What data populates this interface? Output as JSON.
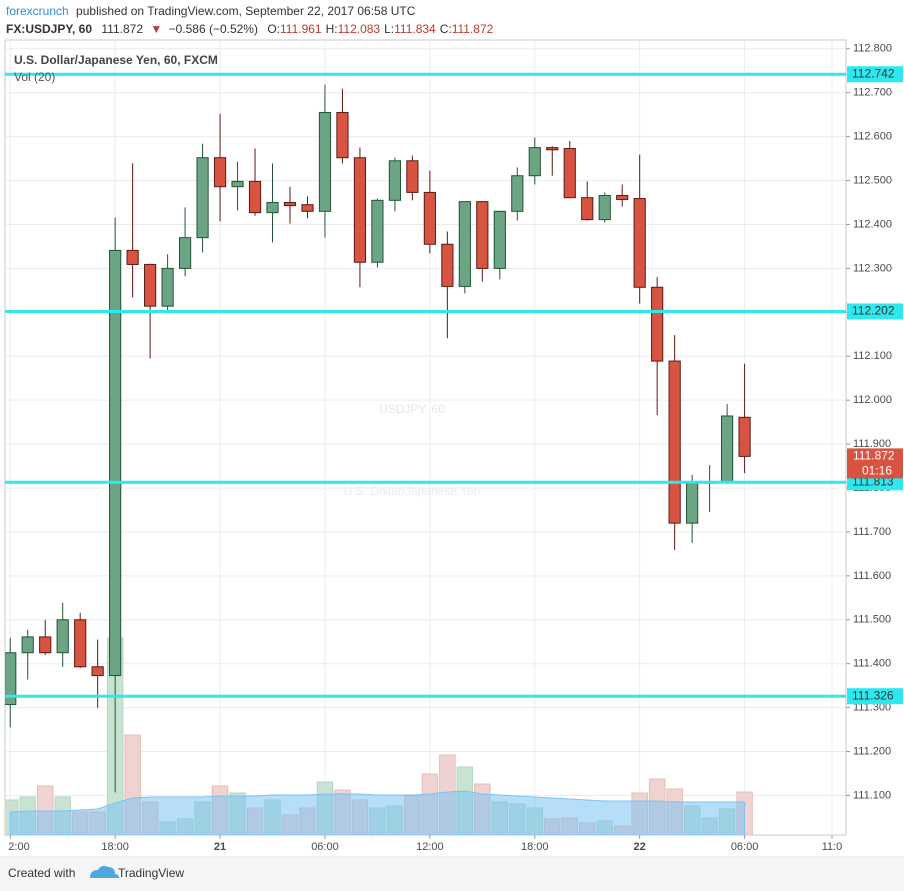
{
  "header": {
    "author": "forexcrunch",
    "published": "published on TradingView.com, September 22, 2017 06:58 UTC"
  },
  "chart_data": {
    "type": "candlestick",
    "symbol": "FX:USDJPY, 60",
    "last": "111.872",
    "arrow": "▼",
    "change": "−0.586 (−0.52%)",
    "ohlc": [
      {
        "name": "O:",
        "value": "111.961"
      },
      {
        "name": "H:",
        "value": "112.083"
      },
      {
        "name": "L:",
        "value": "111.834"
      },
      {
        "name": "C:",
        "value": "111.872"
      }
    ],
    "title": "U.S. Dollar/Japanese Yen, 60, FXCM",
    "indicator": "Vol (20)",
    "watermark": "USDJPY, 60",
    "watermark_subtitle": "U.S. Dollar/Japanese Yen",
    "open": [
      111.307,
      111.425,
      111.461,
      111.425,
      111.5,
      111.393,
      111.373,
      112.341,
      112.309,
      112.214,
      112.3,
      112.37,
      112.552,
      112.486,
      112.498,
      112.427,
      112.45,
      112.445,
      112.43,
      112.655,
      112.552,
      112.314,
      112.455,
      112.545,
      112.473,
      112.355,
      112.259,
      112.452,
      112.3,
      112.43,
      112.511,
      112.575,
      112.573,
      112.461,
      112.411,
      112.466,
      112.459,
      112.257,
      112.089,
      111.72,
      111.811,
      111.814,
      111.961
    ],
    "high": [
      111.459,
      111.477,
      111.5,
      111.539,
      111.516,
      111.455,
      112.416,
      112.539,
      112.311,
      112.332,
      112.439,
      112.584,
      112.652,
      112.543,
      112.573,
      112.539,
      112.486,
      112.464,
      112.718,
      112.709,
      112.575,
      112.459,
      112.552,
      112.557,
      112.523,
      112.384,
      112.452,
      112.452,
      112.43,
      112.53,
      112.598,
      112.578,
      112.59,
      112.498,
      112.473,
      112.491,
      112.559,
      112.28,
      112.148,
      111.83,
      111.852,
      111.991,
      112.083
    ],
    "low": [
      111.255,
      111.364,
      111.42,
      111.393,
      111.39,
      111.3,
      111.107,
      112.234,
      112.095,
      112.198,
      112.282,
      112.336,
      112.407,
      112.432,
      112.42,
      112.359,
      112.402,
      112.414,
      112.37,
      112.539,
      112.257,
      112.302,
      112.43,
      112.455,
      112.334,
      112.141,
      112.243,
      112.27,
      112.275,
      112.409,
      112.491,
      112.511,
      112.461,
      112.409,
      112.405,
      112.441,
      112.22,
      111.966,
      111.659,
      111.675,
      111.745,
      111.809,
      111.834
    ],
    "close": [
      111.425,
      111.461,
      111.425,
      111.5,
      111.393,
      111.373,
      112.341,
      112.309,
      112.214,
      112.3,
      112.37,
      112.552,
      112.486,
      112.498,
      112.427,
      112.45,
      112.443,
      112.43,
      112.655,
      112.552,
      112.314,
      112.455,
      112.545,
      112.473,
      112.355,
      112.259,
      112.452,
      112.3,
      112.43,
      112.511,
      112.575,
      112.57,
      112.461,
      112.411,
      112.466,
      112.457,
      112.257,
      112.089,
      111.72,
      111.811,
      111.814,
      111.964,
      111.872
    ],
    "up_color": "#6ba583",
    "up_border": "#225437",
    "down_color": "#d75442",
    "down_border": "#5b1a13",
    "volume": [
      35,
      38,
      49,
      38,
      23,
      23,
      197,
      100,
      33,
      13,
      16,
      33,
      49,
      42,
      27,
      35,
      20,
      27,
      53,
      45,
      35,
      27,
      29,
      39,
      61,
      80,
      68,
      51,
      33,
      31,
      27,
      16,
      17,
      12,
      14,
      9,
      42,
      56,
      46,
      29,
      17,
      26,
      43
    ],
    "volume_ma": [
      23,
      24,
      24,
      24,
      25,
      26,
      32,
      37,
      38,
      38,
      38,
      38,
      39,
      39,
      39,
      40,
      40,
      40,
      41,
      41,
      41,
      40,
      40,
      40,
      41,
      43,
      44,
      41,
      40,
      39,
      38,
      37,
      36,
      35,
      34,
      34,
      34,
      34,
      33,
      33,
      33,
      33,
      33
    ],
    "volume_ylim": [
      0,
      200
    ],
    "volume_up_color": "#c9e3d3",
    "volume_down_color": "#efd3d1",
    "volume_ma_color": "#7cc3f3",
    "ylim": [
      111.01,
      112.82
    ],
    "yticks": [
      {
        "value": 111.1,
        "label": "111.100"
      },
      {
        "value": 111.2,
        "label": "111.200"
      },
      {
        "value": 111.3,
        "label": "111.300"
      },
      {
        "value": 111.4,
        "label": "111.400"
      },
      {
        "value": 111.5,
        "label": "111.500"
      },
      {
        "value": 111.6,
        "label": "111.600"
      },
      {
        "value": 111.7,
        "label": "111.700"
      },
      {
        "value": 111.8,
        "label": "111.800"
      },
      {
        "value": 111.9,
        "label": "111.900"
      },
      {
        "value": 112.0,
        "label": "112.000"
      },
      {
        "value": 112.1,
        "label": "112.100"
      },
      {
        "value": 112.2,
        "label": "112.200"
      },
      {
        "value": 112.3,
        "label": "112.300"
      },
      {
        "value": 112.4,
        "label": "112.400"
      },
      {
        "value": 112.5,
        "label": "112.500"
      },
      {
        "value": 112.6,
        "label": "112.600"
      },
      {
        "value": 112.7,
        "label": "112.700"
      },
      {
        "value": 112.8,
        "label": "112.800"
      }
    ],
    "xlim": [
      -0.3,
      47.8
    ],
    "xticks": [
      {
        "value": 0,
        "label": "2:00"
      },
      {
        "value": 6,
        "label": "18:00"
      },
      {
        "value": 12,
        "label": "21"
      },
      {
        "value": 18,
        "label": "06:00"
      },
      {
        "value": 24,
        "label": "12:00"
      },
      {
        "value": 30,
        "label": "18:00"
      },
      {
        "value": 36,
        "label": "22"
      },
      {
        "value": 42,
        "label": "06:00"
      },
      {
        "value": 47,
        "label": "11:0"
      }
    ],
    "levels": [
      112.742,
      112.202,
      111.813,
      111.326
    ],
    "level_color": "#2ee8f0",
    "last_price": 111.872,
    "countdown": "01:16",
    "grid": true
  },
  "footer": {
    "created": "Created with",
    "brand": "TradingView"
  }
}
